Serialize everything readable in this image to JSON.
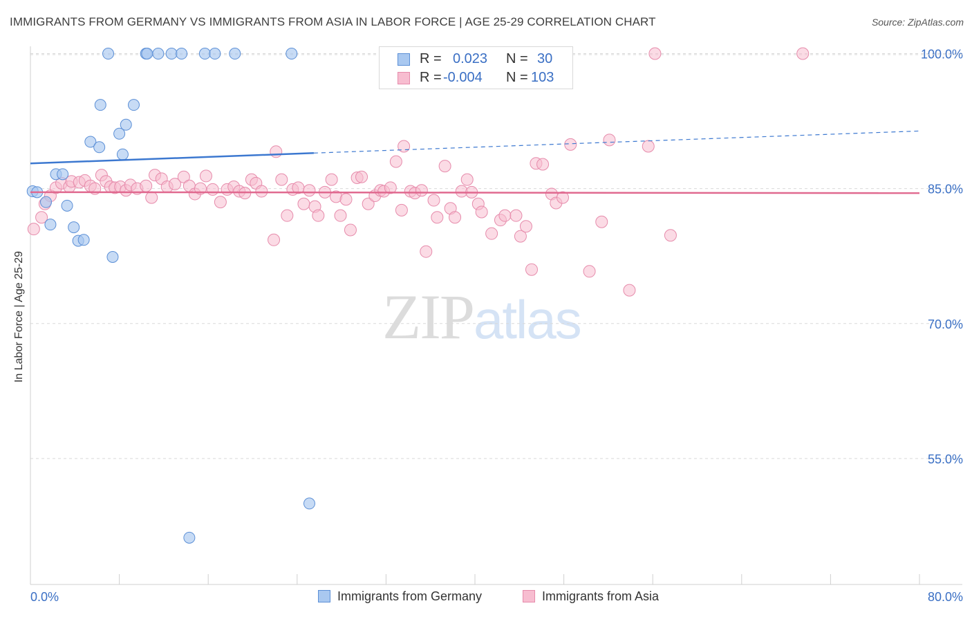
{
  "header": {
    "title": "IMMIGRANTS FROM GERMANY VS IMMIGRANTS FROM ASIA IN LABOR FORCE | AGE 25-29 CORRELATION CHART",
    "source": "Source: ZipAtlas.com"
  },
  "watermark": {
    "zip": "ZIP",
    "atlas": "atlas"
  },
  "colors": {
    "germany_fill": "#a9c8f0",
    "germany_stroke": "#5b8fd6",
    "germany_line": "#3c78d0",
    "asia_fill": "#f7bdd0",
    "asia_stroke": "#e68bab",
    "asia_line": "#e0698f",
    "tick_label": "#3a6fc4",
    "grid": "#d9d9d9"
  },
  "stats": {
    "germany": {
      "r_label": "R =",
      "r_value": "0.023",
      "n_label": "N =",
      "n_value": "30"
    },
    "asia": {
      "r_label": "R =",
      "r_value": "-0.004",
      "n_label": "N =",
      "n_value": "103"
    }
  },
  "chart_data": {
    "type": "scatter",
    "title": "IMMIGRANTS FROM GERMANY VS IMMIGRANTS FROM ASIA IN LABOR FORCE | AGE 25-29 CORRELATION CHART",
    "xlabel": "",
    "ylabel": "In Labor Force | Age 25-29",
    "xlim": [
      0,
      80
    ],
    "ylim": [
      41,
      101.5
    ],
    "x_tick_labels": [
      "0.0%",
      "80.0%"
    ],
    "y_ticks": [
      55,
      70,
      85,
      100
    ],
    "y_tick_labels": [
      "55.0%",
      "70.0%",
      "85.0%",
      "100.0%"
    ],
    "grid": true,
    "legend_position": "bottom",
    "series": [
      {
        "name": "Immigrants from Germany",
        "points": [
          [
            7.0,
            100.0
          ],
          [
            10.4,
            100.0
          ],
          [
            10.5,
            100.0
          ],
          [
            11.5,
            100.0
          ],
          [
            12.7,
            100.0
          ],
          [
            13.6,
            100.0
          ],
          [
            15.7,
            100.0
          ],
          [
            16.6,
            100.0
          ],
          [
            18.4,
            100.0
          ],
          [
            23.5,
            100.0
          ],
          [
            6.3,
            94.3
          ],
          [
            9.3,
            94.3
          ],
          [
            8.6,
            92.1
          ],
          [
            8.0,
            91.1
          ],
          [
            5.4,
            90.2
          ],
          [
            6.2,
            89.6
          ],
          [
            8.3,
            88.8
          ],
          [
            2.3,
            86.6
          ],
          [
            2.9,
            86.6
          ],
          [
            0.2,
            84.7
          ],
          [
            0.6,
            84.6
          ],
          [
            1.4,
            83.5
          ],
          [
            3.3,
            83.1
          ],
          [
            1.8,
            81.0
          ],
          [
            3.9,
            80.7
          ],
          [
            4.3,
            79.2
          ],
          [
            4.8,
            79.3
          ],
          [
            7.4,
            77.4
          ],
          [
            25.1,
            50.0
          ],
          [
            14.3,
            46.2
          ]
        ],
        "trend": {
          "x": [
            0,
            80
          ],
          "y": [
            87.8,
            91.4
          ],
          "solid_until_x": 25.5
        }
      },
      {
        "name": "Immigrants from Asia",
        "points": [
          [
            0.3,
            80.5
          ],
          [
            1.0,
            81.8
          ],
          [
            1.3,
            83.3
          ],
          [
            1.8,
            84.2
          ],
          [
            2.3,
            85.1
          ],
          [
            2.8,
            85.6
          ],
          [
            3.5,
            85.2
          ],
          [
            3.7,
            85.8
          ],
          [
            4.4,
            85.7
          ],
          [
            4.9,
            85.9
          ],
          [
            5.4,
            85.3
          ],
          [
            5.8,
            85.0
          ],
          [
            6.4,
            86.5
          ],
          [
            6.8,
            85.8
          ],
          [
            7.2,
            85.2
          ],
          [
            7.6,
            85.1
          ],
          [
            8.1,
            85.2
          ],
          [
            8.6,
            84.8
          ],
          [
            9.0,
            85.4
          ],
          [
            9.6,
            85.0
          ],
          [
            10.4,
            85.3
          ],
          [
            10.9,
            84.0
          ],
          [
            11.2,
            86.5
          ],
          [
            11.8,
            86.1
          ],
          [
            12.3,
            85.2
          ],
          [
            13.0,
            85.5
          ],
          [
            13.8,
            86.3
          ],
          [
            14.3,
            85.3
          ],
          [
            14.8,
            84.4
          ],
          [
            15.3,
            85.0
          ],
          [
            15.8,
            86.4
          ],
          [
            16.4,
            84.9
          ],
          [
            17.1,
            83.5
          ],
          [
            17.7,
            84.9
          ],
          [
            18.3,
            85.2
          ],
          [
            18.8,
            84.7
          ],
          [
            19.3,
            84.5
          ],
          [
            19.9,
            86.0
          ],
          [
            20.3,
            85.6
          ],
          [
            20.8,
            84.7
          ],
          [
            21.9,
            79.3
          ],
          [
            22.1,
            89.1
          ],
          [
            22.6,
            86.0
          ],
          [
            23.1,
            82.0
          ],
          [
            23.6,
            84.9
          ],
          [
            24.1,
            85.1
          ],
          [
            24.6,
            83.3
          ],
          [
            25.1,
            84.8
          ],
          [
            25.6,
            83.0
          ],
          [
            25.9,
            82.0
          ],
          [
            26.5,
            84.6
          ],
          [
            27.1,
            86.0
          ],
          [
            27.5,
            84.1
          ],
          [
            27.9,
            82.0
          ],
          [
            28.4,
            83.8
          ],
          [
            28.8,
            80.4
          ],
          [
            29.4,
            86.2
          ],
          [
            29.8,
            86.3
          ],
          [
            30.4,
            83.3
          ],
          [
            31.0,
            84.2
          ],
          [
            31.5,
            84.8
          ],
          [
            31.8,
            84.7
          ],
          [
            32.4,
            85.1
          ],
          [
            32.9,
            88.0
          ],
          [
            33.4,
            82.6
          ],
          [
            33.6,
            89.7
          ],
          [
            34.2,
            84.7
          ],
          [
            34.6,
            84.5
          ],
          [
            35.2,
            84.8
          ],
          [
            35.6,
            78.0
          ],
          [
            36.3,
            83.7
          ],
          [
            36.6,
            81.8
          ],
          [
            37.3,
            87.5
          ],
          [
            37.8,
            82.8
          ],
          [
            38.2,
            81.8
          ],
          [
            38.8,
            84.7
          ],
          [
            39.3,
            86.0
          ],
          [
            39.7,
            84.6
          ],
          [
            40.3,
            83.3
          ],
          [
            40.6,
            82.4
          ],
          [
            41.5,
            80.0
          ],
          [
            42.3,
            81.5
          ],
          [
            42.7,
            82.0
          ],
          [
            43.7,
            82.0
          ],
          [
            44.1,
            79.7
          ],
          [
            44.6,
            80.8
          ],
          [
            45.1,
            76.0
          ],
          [
            45.5,
            87.8
          ],
          [
            46.1,
            87.7
          ],
          [
            46.9,
            84.4
          ],
          [
            47.3,
            83.4
          ],
          [
            47.9,
            84.0
          ],
          [
            48.6,
            89.9
          ],
          [
            50.3,
            75.8
          ],
          [
            51.4,
            81.3
          ],
          [
            52.1,
            90.4
          ],
          [
            53.9,
            73.7
          ],
          [
            55.6,
            89.7
          ],
          [
            57.6,
            79.8
          ],
          [
            56.2,
            100.0
          ],
          [
            69.5,
            100.0
          ]
        ],
        "trend": {
          "x": [
            0,
            80
          ],
          "y": [
            84.6,
            84.5
          ]
        }
      }
    ]
  },
  "legend_bottom": {
    "germany_label": "Immigrants from Germany",
    "asia_label": "Immigrants from Asia"
  }
}
